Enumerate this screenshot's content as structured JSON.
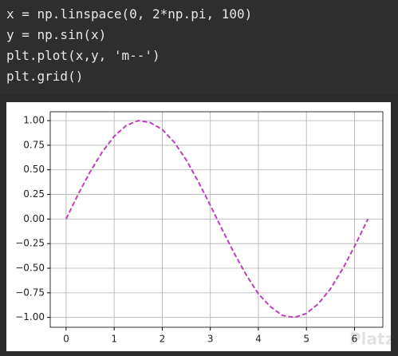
{
  "code": {
    "lines": [
      "x = np.linspace(0, 2*np.pi, 100)",
      "y = np.sin(x)",
      "plt.plot(x,y, 'm--')",
      "plt.grid()"
    ]
  },
  "chart_data": {
    "type": "line",
    "x": [
      0,
      0.25,
      0.5,
      0.75,
      1.0,
      1.25,
      1.5,
      1.75,
      2.0,
      2.25,
      2.5,
      2.75,
      3.0,
      3.25,
      3.5,
      3.75,
      4.0,
      4.25,
      4.5,
      4.75,
      5.0,
      5.25,
      5.5,
      5.75,
      6.0,
      6.25,
      6.28
    ],
    "series": [
      {
        "color": "#bf3fbf",
        "dash": true,
        "values": [
          0,
          0.25,
          0.48,
          0.68,
          0.84,
          0.95,
          1.0,
          0.98,
          0.91,
          0.78,
          0.6,
          0.38,
          0.14,
          -0.11,
          -0.35,
          -0.57,
          -0.76,
          -0.89,
          -0.98,
          -1.0,
          -0.96,
          -0.86,
          -0.71,
          -0.51,
          -0.28,
          -0.03,
          0
        ]
      }
    ],
    "xlim": [
      -0.33,
      6.59
    ],
    "ylim": [
      -1.1,
      1.09
    ],
    "xticks": [
      0,
      1,
      2,
      3,
      4,
      5,
      6
    ],
    "yticks": [
      {
        "value": -1,
        "label": "−1.00"
      },
      {
        "value": -0.75,
        "label": "−0.75"
      },
      {
        "value": -0.5,
        "label": "−0.50"
      },
      {
        "value": -0.25,
        "label": "−0.25"
      },
      {
        "value": 0,
        "label": "0.00"
      },
      {
        "value": 0.25,
        "label": "0.25"
      },
      {
        "value": 0.5,
        "label": "0.50"
      },
      {
        "value": 0.75,
        "label": "0.75"
      },
      {
        "value": 1,
        "label": "1.00"
      }
    ],
    "grid": true,
    "watermark": "Platzi"
  }
}
